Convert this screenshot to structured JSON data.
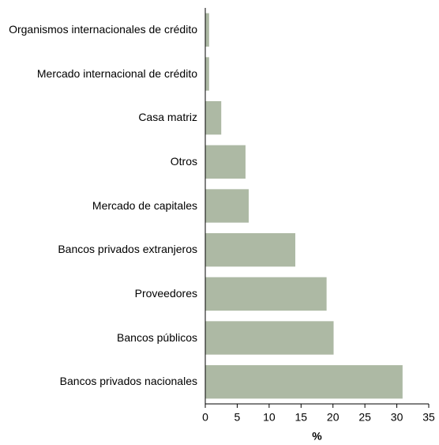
{
  "chart_data": {
    "type": "barh",
    "categories": [
      "Organismos internacionales de crédito",
      "Mercado internacional de crédito",
      "Casa matriz",
      "Otros",
      "Mercado de capitales",
      "Bancos privados extranjeros",
      "Proveedores",
      "Bancos públicos",
      "Bancos privados nacionales"
    ],
    "values": [
      0.6,
      0.6,
      2.5,
      6.3,
      6.8,
      14.1,
      19.0,
      20.1,
      30.9
    ],
    "color": "#adb9a4",
    "xlabel": "%",
    "xlim": [
      0,
      35
    ],
    "xticks": [
      0,
      5,
      10,
      15,
      20,
      25,
      30,
      35
    ],
    "grid": false
  }
}
